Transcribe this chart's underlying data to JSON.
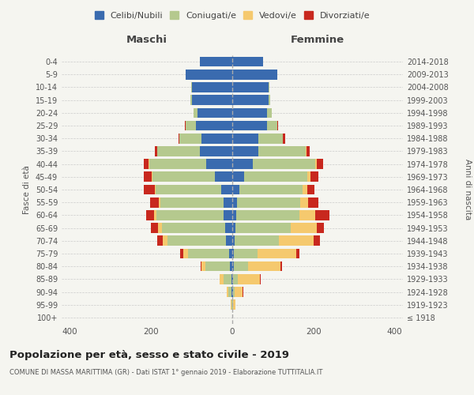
{
  "age_groups": [
    "100+",
    "95-99",
    "90-94",
    "85-89",
    "80-84",
    "75-79",
    "70-74",
    "65-69",
    "60-64",
    "55-59",
    "50-54",
    "45-49",
    "40-44",
    "35-39",
    "30-34",
    "25-29",
    "20-24",
    "15-19",
    "10-14",
    "5-9",
    "0-4"
  ],
  "birth_years": [
    "≤ 1918",
    "1919-1923",
    "1924-1928",
    "1929-1933",
    "1934-1938",
    "1939-1943",
    "1944-1948",
    "1949-1953",
    "1954-1958",
    "1959-1963",
    "1964-1968",
    "1969-1973",
    "1974-1978",
    "1979-1983",
    "1984-1988",
    "1989-1993",
    "1994-1998",
    "1999-2003",
    "2004-2008",
    "2009-2013",
    "2014-2018"
  ],
  "males": {
    "celibi": [
      0,
      0,
      1,
      2,
      6,
      8,
      15,
      18,
      22,
      22,
      28,
      42,
      65,
      80,
      75,
      90,
      85,
      100,
      100,
      115,
      80
    ],
    "coniugati": [
      0,
      2,
      8,
      20,
      60,
      100,
      145,
      155,
      165,
      155,
      160,
      155,
      140,
      105,
      55,
      25,
      10,
      3,
      2,
      0,
      0
    ],
    "vedovi": [
      0,
      1,
      5,
      10,
      10,
      12,
      12,
      10,
      5,
      3,
      2,
      2,
      2,
      0,
      0,
      0,
      0,
      0,
      0,
      0,
      0
    ],
    "divorziati": [
      0,
      0,
      0,
      0,
      2,
      8,
      12,
      18,
      20,
      22,
      28,
      18,
      10,
      5,
      2,
      2,
      0,
      0,
      0,
      0,
      0
    ]
  },
  "females": {
    "nubili": [
      0,
      0,
      1,
      1,
      3,
      3,
      5,
      8,
      10,
      12,
      18,
      30,
      50,
      65,
      65,
      85,
      85,
      90,
      90,
      110,
      75
    ],
    "coniugate": [
      0,
      2,
      5,
      12,
      35,
      60,
      110,
      135,
      155,
      155,
      155,
      155,
      155,
      115,
      60,
      25,
      12,
      4,
      2,
      0,
      0
    ],
    "vedove": [
      0,
      5,
      20,
      55,
      80,
      95,
      85,
      65,
      40,
      20,
      12,
      8,
      4,
      2,
      0,
      0,
      0,
      0,
      0,
      0,
      0
    ],
    "divorziate": [
      0,
      0,
      2,
      2,
      5,
      8,
      15,
      18,
      35,
      25,
      18,
      18,
      15,
      8,
      5,
      2,
      0,
      0,
      0,
      0,
      0
    ]
  },
  "colors": {
    "celibi": "#3a6baf",
    "coniugati": "#b5c98e",
    "vedovi": "#f5c96e",
    "divorziati": "#c8281e"
  },
  "title": "Popolazione per età, sesso e stato civile - 2019",
  "subtitle": "COMUNE DI MASSA MARITTIMA (GR) - Dati ISTAT 1° gennaio 2019 - Elaborazione TUTTITALIA.IT",
  "xlabel_left": "Maschi",
  "xlabel_right": "Femmine",
  "ylabel_left": "Fasce di età",
  "ylabel_right": "Anni di nascita",
  "xlim": 420,
  "bg_color": "#f5f5f0",
  "grid_color": "#cccccc"
}
